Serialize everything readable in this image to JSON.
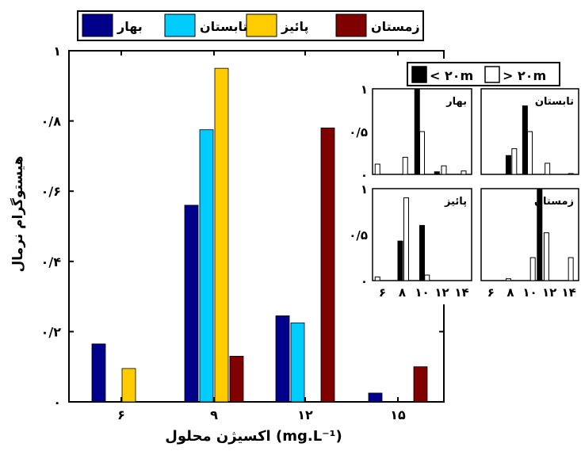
{
  "chart_data": [
    {
      "type": "bar",
      "title": "",
      "xlabel": "اکسیژن محلول (mg.L⁻¹)",
      "ylabel": "هیستوگرام نرمال",
      "categories": [
        "۶",
        "۹",
        "۱۲",
        "۱۵"
      ],
      "y_tick_labels": [
        "۰",
        "۰/۲",
        "۰/۴",
        "۰/۶",
        "۰/۸",
        "۱"
      ],
      "ylim": [
        0,
        1
      ],
      "legend_position": "top",
      "series": [
        {
          "name": "بهار",
          "color": "#00008B",
          "values": [
            0.165,
            0.56,
            0.245,
            0.025
          ]
        },
        {
          "name": "تابستان",
          "color": "#00CCFF",
          "values": [
            0,
            0.775,
            0.225,
            0
          ]
        },
        {
          "name": "پائیز",
          "color": "#FFCC00",
          "values": [
            0.095,
            0.95,
            0,
            0
          ]
        },
        {
          "name": "زمستان",
          "color": "#800000",
          "values": [
            0,
            0.13,
            0.78,
            0.1
          ]
        }
      ]
    },
    {
      "type": "bar",
      "title": "",
      "legend_position": "top",
      "legend": [
        {
          "name": "< ۲۰m",
          "color": "#000000"
        },
        {
          "name": "> ۲۰m",
          "color": "#FFFFFF"
        }
      ],
      "x_tick_labels": [
        "۶",
        "۸",
        "۱۰",
        "۱۲",
        "۱۴"
      ],
      "x_tick_values": [
        6,
        8,
        10,
        12,
        14
      ],
      "y_tick_labels": [
        "۰",
        "۰/۵",
        "۱"
      ],
      "xlim": [
        5,
        15
      ],
      "ylim": [
        0,
        1
      ],
      "panels": [
        {
          "name": "بهار",
          "black": [
            {
              "x": 9.5,
              "y": 1.0
            },
            {
              "x": 11.5,
              "y": 0.03
            }
          ],
          "white": [
            {
              "x": 5.5,
              "y": 0.12
            },
            {
              "x": 8.3,
              "y": 0.2
            },
            {
              "x": 10.0,
              "y": 0.5
            },
            {
              "x": 12.2,
              "y": 0.1
            },
            {
              "x": 14.2,
              "y": 0.04
            }
          ]
        },
        {
          "name": "تابستان",
          "black": [
            {
              "x": 7.8,
              "y": 0.22
            },
            {
              "x": 9.5,
              "y": 0.8
            }
          ],
          "white": [
            {
              "x": 8.4,
              "y": 0.3
            },
            {
              "x": 10.0,
              "y": 0.5
            },
            {
              "x": 11.8,
              "y": 0.13
            },
            {
              "x": 14.2,
              "y": 0.01
            }
          ]
        },
        {
          "name": "پائیز",
          "black": [
            {
              "x": 7.8,
              "y": 0.43
            },
            {
              "x": 10.0,
              "y": 0.6
            }
          ],
          "white": [
            {
              "x": 5.5,
              "y": 0.04
            },
            {
              "x": 8.4,
              "y": 0.9
            },
            {
              "x": 10.5,
              "y": 0.06
            }
          ]
        },
        {
          "name": "زمستان",
          "black": [
            {
              "x": 11.0,
              "y": 1.0
            }
          ],
          "white": [
            {
              "x": 7.8,
              "y": 0.02
            },
            {
              "x": 10.3,
              "y": 0.25
            },
            {
              "x": 11.7,
              "y": 0.52
            },
            {
              "x": 14.2,
              "y": 0.25
            }
          ]
        }
      ]
    }
  ]
}
